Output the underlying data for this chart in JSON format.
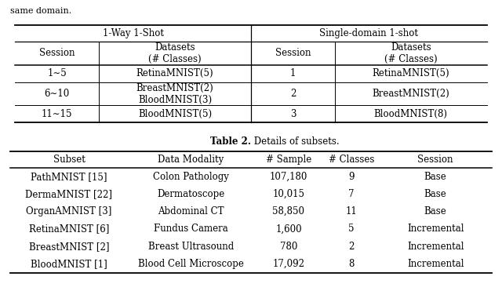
{
  "fig_width": 6.4,
  "fig_height": 3.71,
  "dpi": 100,
  "top_text": "same domain.",
  "table1_col_group1": "1-Way 1-Shot",
  "table1_col_group2": "Single-domain 1-shot",
  "table1_headers": [
    "Session",
    "Datasets\n(# Classes)",
    "Session",
    "Datasets\n(# Classes)"
  ],
  "table1_rows": [
    [
      "1∼5",
      "RetinaMNIST(5)",
      "1",
      "RetinaMNIST(5)"
    ],
    [
      "6∼10",
      "BreastMNIST(2)\nBloodMNIST(3)",
      "2",
      "BreastMNIST(2)"
    ],
    [
      "11∼15",
      "BloodMNIST(5)",
      "3",
      "BloodMNIST(8)"
    ]
  ],
  "table2_caption_bold": "Table 2.",
  "table2_caption_normal": " Details of subsets.",
  "table2_headers": [
    "Subset",
    "Data Modality",
    "# Sample",
    "# Classes",
    "Session"
  ],
  "table2_rows": [
    [
      "PathMNIST [15]",
      "Colon Pathology",
      "107,180",
      "9",
      "Base"
    ],
    [
      "DermaMNIST [22]",
      "Dermatoscope",
      "10,015",
      "7",
      "Base"
    ],
    [
      "OrganAMNIST [3]",
      "Abdominal CT",
      "58,850",
      "11",
      "Base"
    ],
    [
      "RetinaMNIST [6]",
      "Fundus Camera",
      "1,600",
      "5",
      "Incremental"
    ],
    [
      "BreastMNIST [2]",
      "Breast Ultrasound",
      "780",
      "2",
      "Incremental"
    ],
    [
      "BloodMNIST [1]",
      "Blood Cell Microscope",
      "17,092",
      "8",
      "Incremental"
    ]
  ],
  "bg_color": "#ffffff",
  "text_color": "#000000"
}
